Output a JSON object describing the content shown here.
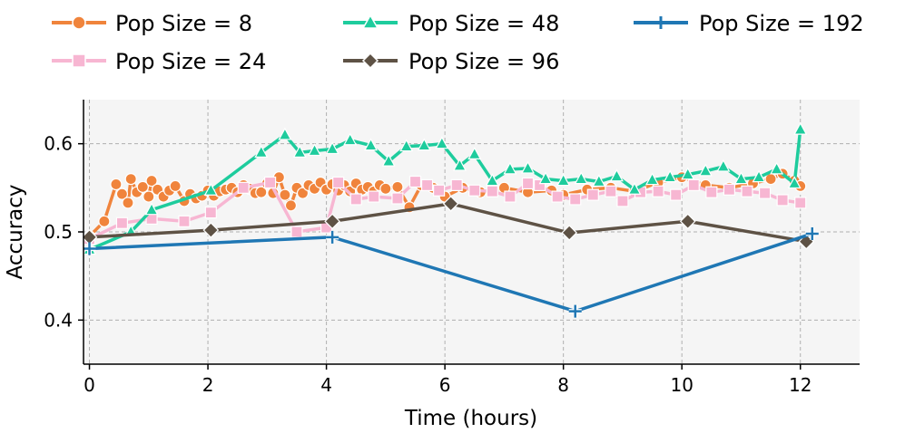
{
  "chart_data": {
    "type": "line",
    "title": "",
    "xlabel": "Time (hours)",
    "ylabel": "Accuracy",
    "xlim": [
      -0.1,
      13.0
    ],
    "ylim": [
      0.35,
      0.65
    ],
    "xticks": [
      0,
      2,
      4,
      6,
      8,
      10,
      12
    ],
    "yticks": [
      0.4,
      0.5,
      0.6
    ],
    "xtick_labels": [
      "0",
      "2",
      "4",
      "6",
      "8",
      "10",
      "12"
    ],
    "ytick_labels": [
      "0.4",
      "0.5",
      "0.6"
    ],
    "grid": true,
    "legend_position": "top",
    "series": [
      {
        "name": "Pop Size = 8",
        "color": "#f0843c",
        "marker": "circle",
        "x": [
          0,
          0.25,
          0.45,
          0.55,
          0.65,
          0.7,
          0.8,
          0.9,
          1.0,
          1.05,
          1.15,
          1.25,
          1.35,
          1.45,
          1.6,
          1.7,
          1.8,
          1.9,
          2.0,
          2.1,
          2.2,
          2.3,
          2.4,
          2.5,
          2.6,
          2.7,
          2.8,
          2.9,
          3.0,
          3.1,
          3.2,
          3.3,
          3.4,
          3.5,
          3.6,
          3.7,
          3.8,
          3.9,
          4.0,
          4.1,
          4.2,
          4.3,
          4.4,
          4.5,
          4.6,
          4.7,
          4.8,
          4.9,
          5.0,
          5.2,
          5.4,
          5.6,
          5.8,
          6.0,
          6.3,
          6.6,
          7.0,
          7.4,
          7.8,
          8.0,
          8.4,
          8.8,
          9.2,
          9.6,
          10.0,
          10.4,
          10.8,
          11.2,
          11.5,
          11.7,
          11.9,
          12.0
        ],
        "values": [
          0.495,
          0.512,
          0.554,
          0.543,
          0.533,
          0.56,
          0.545,
          0.551,
          0.54,
          0.558,
          0.548,
          0.54,
          0.547,
          0.552,
          0.535,
          0.543,
          0.538,
          0.541,
          0.547,
          0.541,
          0.546,
          0.548,
          0.55,
          0.545,
          0.553,
          0.549,
          0.544,
          0.545,
          0.555,
          0.544,
          0.562,
          0.542,
          0.53,
          0.55,
          0.544,
          0.553,
          0.549,
          0.556,
          0.548,
          0.554,
          0.547,
          0.553,
          0.546,
          0.555,
          0.548,
          0.551,
          0.546,
          0.553,
          0.549,
          0.551,
          0.528,
          0.553,
          0.55,
          0.54,
          0.55,
          0.545,
          0.55,
          0.545,
          0.547,
          0.542,
          0.548,
          0.55,
          0.546,
          0.556,
          0.562,
          0.553,
          0.55,
          0.555,
          0.56,
          0.566,
          0.558,
          0.552
        ]
      },
      {
        "name": "Pop Size = 24",
        "color": "#f7b6d2",
        "marker": "square",
        "x": [
          0,
          0.55,
          1.05,
          1.6,
          2.05,
          2.6,
          3.05,
          3.5,
          4.0,
          4.2,
          4.5,
          4.8,
          5.2,
          5.5,
          5.7,
          5.9,
          6.2,
          6.5,
          6.8,
          7.1,
          7.4,
          7.6,
          7.9,
          8.2,
          8.5,
          8.8,
          9.0,
          9.3,
          9.6,
          9.9,
          10.2,
          10.5,
          10.8,
          11.1,
          11.4,
          11.7,
          12.0
        ],
        "values": [
          0.492,
          0.51,
          0.515,
          0.512,
          0.522,
          0.55,
          0.556,
          0.5,
          0.505,
          0.556,
          0.537,
          0.54,
          0.538,
          0.557,
          0.553,
          0.547,
          0.553,
          0.547,
          0.546,
          0.54,
          0.555,
          0.553,
          0.54,
          0.537,
          0.542,
          0.546,
          0.535,
          0.545,
          0.546,
          0.542,
          0.553,
          0.545,
          0.548,
          0.546,
          0.544,
          0.536,
          0.533
        ]
      },
      {
        "name": "Pop Size = 48",
        "color": "#1ecc9d",
        "marker": "triangle",
        "x": [
          0,
          0.7,
          1.05,
          2.05,
          2.9,
          3.3,
          3.55,
          3.8,
          4.1,
          4.4,
          4.75,
          5.05,
          5.35,
          5.65,
          5.95,
          6.25,
          6.5,
          6.8,
          7.1,
          7.4,
          7.7,
          8.0,
          8.3,
          8.6,
          8.9,
          9.2,
          9.5,
          9.8,
          10.1,
          10.4,
          10.7,
          11.0,
          11.3,
          11.6,
          11.9,
          12.0
        ],
        "values": [
          0.48,
          0.5,
          0.525,
          0.547,
          0.59,
          0.61,
          0.59,
          0.592,
          0.594,
          0.604,
          0.598,
          0.58,
          0.597,
          0.598,
          0.6,
          0.575,
          0.588,
          0.558,
          0.571,
          0.572,
          0.56,
          0.558,
          0.56,
          0.557,
          0.563,
          0.548,
          0.559,
          0.562,
          0.565,
          0.569,
          0.574,
          0.56,
          0.562,
          0.571,
          0.555,
          0.616
        ]
      },
      {
        "name": "Pop Size = 96",
        "color": "#5e5245",
        "marker": "diamond",
        "x": [
          0,
          2.05,
          4.1,
          6.1,
          8.1,
          10.1,
          12.1
        ],
        "values": [
          0.494,
          0.502,
          0.512,
          0.532,
          0.499,
          0.512,
          0.489
        ]
      },
      {
        "name": "Pop Size = 192",
        "color": "#1f77b4",
        "marker": "plus",
        "x": [
          0,
          4.1,
          8.2,
          12.2
        ],
        "values": [
          0.481,
          0.494,
          0.41,
          0.498
        ]
      }
    ]
  }
}
